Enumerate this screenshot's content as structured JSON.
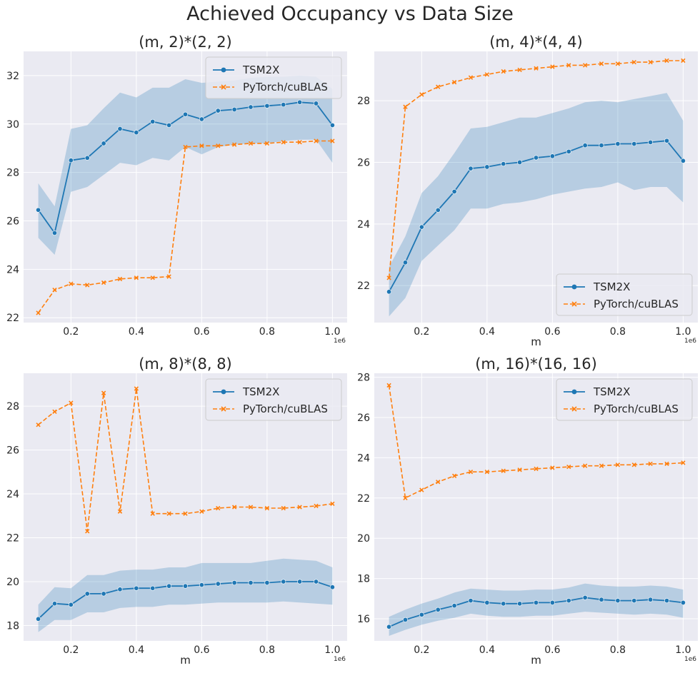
{
  "figure": {
    "suptitle": "Achieved Occupancy vs Data Size"
  },
  "colors": {
    "tsm2x": "#1f77b4",
    "cublas": "#ff7f0e",
    "band": "#1f77b4",
    "panel_bg": "#eaeaf2",
    "grid": "#ffffff"
  },
  "chart_data": [
    {
      "type": "line",
      "title": "(m, 2)*(2, 2)",
      "xlabel": "",
      "ylabel": "",
      "x_offset_label": "1e6",
      "x": [
        0.1,
        0.15,
        0.2,
        0.25,
        0.3,
        0.35,
        0.4,
        0.45,
        0.5,
        0.55,
        0.6,
        0.65,
        0.7,
        0.75,
        0.8,
        0.85,
        0.9,
        0.95,
        1.0
      ],
      "xlim": [
        0.055,
        1.045
      ],
      "ylim": [
        21.8,
        33.0
      ],
      "xticks": [
        0.2,
        0.4,
        0.6,
        0.8,
        1.0
      ],
      "xtick_labels": [
        "0.2",
        "0.4",
        "0.6",
        "0.8",
        "1.0"
      ],
      "yticks": [
        22,
        24,
        26,
        28,
        30,
        32
      ],
      "ytick_labels": [
        "22",
        "24",
        "26",
        "28",
        "30",
        "32"
      ],
      "legend": "upper right",
      "series": [
        {
          "name": "TSM2X",
          "marker": "circle",
          "values": [
            26.45,
            25.5,
            28.5,
            28.6,
            29.2,
            29.8,
            29.65,
            30.1,
            29.95,
            30.4,
            30.2,
            30.55,
            30.6,
            30.7,
            30.75,
            30.8,
            30.9,
            30.85,
            29.95
          ],
          "band_low": [
            25.3,
            24.6,
            27.2,
            27.4,
            27.9,
            28.4,
            28.3,
            28.6,
            28.5,
            29.05,
            28.75,
            29.05,
            29.15,
            29.2,
            29.2,
            29.3,
            29.35,
            29.35,
            28.4
          ],
          "band_high": [
            27.55,
            26.6,
            29.8,
            29.95,
            30.65,
            31.3,
            31.1,
            31.5,
            31.5,
            31.85,
            31.7,
            31.75,
            31.8,
            31.9,
            31.95,
            31.95,
            32.0,
            31.95,
            31.45
          ]
        },
        {
          "name": "PyTorch/cuBLAS",
          "marker": "x",
          "values": [
            22.2,
            23.15,
            23.4,
            23.35,
            23.45,
            23.6,
            23.65,
            23.65,
            23.7,
            29.05,
            29.1,
            29.1,
            29.15,
            29.2,
            29.2,
            29.25,
            29.25,
            29.3,
            29.3
          ]
        }
      ]
    },
    {
      "type": "line",
      "title": "(m, 4)*(4, 4)",
      "xlabel": "m",
      "ylabel": "",
      "x_offset_label": "1e6",
      "x": [
        0.1,
        0.15,
        0.2,
        0.25,
        0.3,
        0.35,
        0.4,
        0.45,
        0.5,
        0.55,
        0.6,
        0.65,
        0.7,
        0.75,
        0.8,
        0.85,
        0.9,
        0.95,
        1.0
      ],
      "xlim": [
        0.055,
        1.045
      ],
      "ylim": [
        20.8,
        29.6
      ],
      "xticks": [
        0.2,
        0.4,
        0.6,
        0.8,
        1.0
      ],
      "xtick_labels": [
        "0.2",
        "0.4",
        "0.6",
        "0.8",
        "1.0"
      ],
      "yticks": [
        22,
        24,
        26,
        28
      ],
      "ytick_labels": [
        "22",
        "24",
        "26",
        "28"
      ],
      "legend": "lower right",
      "series": [
        {
          "name": "TSM2X",
          "marker": "circle",
          "values": [
            21.8,
            22.75,
            23.9,
            24.45,
            25.05,
            25.8,
            25.85,
            25.95,
            26.0,
            26.15,
            26.2,
            26.35,
            26.55,
            26.55,
            26.6,
            26.6,
            26.65,
            26.7,
            26.05
          ],
          "band_low": [
            21.0,
            21.6,
            22.8,
            23.3,
            23.8,
            24.5,
            24.5,
            24.65,
            24.7,
            24.8,
            24.95,
            25.05,
            25.15,
            25.2,
            25.35,
            25.1,
            25.2,
            25.2,
            24.7
          ],
          "band_high": [
            22.6,
            23.6,
            25.0,
            25.55,
            26.3,
            27.1,
            27.15,
            27.3,
            27.45,
            27.45,
            27.6,
            27.75,
            27.95,
            28.0,
            27.95,
            28.05,
            28.15,
            28.25,
            27.35
          ]
        },
        {
          "name": "PyTorch/cuBLAS",
          "marker": "x",
          "values": [
            22.25,
            27.8,
            28.2,
            28.45,
            28.6,
            28.75,
            28.85,
            28.95,
            29.0,
            29.05,
            29.1,
            29.15,
            29.15,
            29.2,
            29.2,
            29.25,
            29.25,
            29.3,
            29.3
          ]
        }
      ]
    },
    {
      "type": "line",
      "title": "(m, 8)*(8, 8)",
      "xlabel": "m",
      "ylabel": "",
      "x_offset_label": "1e6",
      "x": [
        0.1,
        0.15,
        0.2,
        0.25,
        0.3,
        0.35,
        0.4,
        0.45,
        0.5,
        0.55,
        0.6,
        0.65,
        0.7,
        0.75,
        0.8,
        0.85,
        0.9,
        0.95,
        1.0
      ],
      "xlim": [
        0.055,
        1.045
      ],
      "ylim": [
        17.3,
        29.5
      ],
      "xticks": [
        0.2,
        0.4,
        0.6,
        0.8,
        1.0
      ],
      "xtick_labels": [
        "0.2",
        "0.4",
        "0.6",
        "0.8",
        "1.0"
      ],
      "yticks": [
        18,
        20,
        22,
        24,
        26,
        28
      ],
      "ytick_labels": [
        "18",
        "20",
        "22",
        "24",
        "26",
        "28"
      ],
      "legend": "upper right",
      "series": [
        {
          "name": "TSM2X",
          "marker": "circle",
          "values": [
            18.3,
            19.0,
            18.95,
            19.45,
            19.45,
            19.65,
            19.7,
            19.7,
            19.8,
            19.8,
            19.85,
            19.9,
            19.95,
            19.95,
            19.95,
            20.0,
            20.0,
            20.0,
            19.75
          ],
          "band_low": [
            17.7,
            18.25,
            18.25,
            18.6,
            18.6,
            18.8,
            18.85,
            18.85,
            18.95,
            18.95,
            19.0,
            19.05,
            19.05,
            19.05,
            19.05,
            19.1,
            19.05,
            19.0,
            18.95
          ],
          "band_high": [
            18.95,
            19.75,
            19.7,
            20.3,
            20.3,
            20.5,
            20.55,
            20.55,
            20.65,
            20.65,
            20.85,
            20.85,
            20.85,
            20.85,
            20.95,
            21.05,
            21.0,
            20.95,
            20.65
          ]
        },
        {
          "name": "PyTorch/cuBLAS",
          "marker": "x",
          "values": [
            27.15,
            27.75,
            28.15,
            22.3,
            28.6,
            23.2,
            28.8,
            23.1,
            23.1,
            23.1,
            23.2,
            23.35,
            23.4,
            23.4,
            23.35,
            23.35,
            23.4,
            23.45,
            23.55
          ]
        }
      ]
    },
    {
      "type": "line",
      "title": "(m, 16)*(16, 16)",
      "xlabel": "m",
      "ylabel": "",
      "x_offset_label": "1e6",
      "x": [
        0.1,
        0.15,
        0.2,
        0.25,
        0.3,
        0.35,
        0.4,
        0.45,
        0.5,
        0.55,
        0.6,
        0.65,
        0.7,
        0.75,
        0.8,
        0.85,
        0.9,
        0.95,
        1.0
      ],
      "xlim": [
        0.055,
        1.045
      ],
      "ylim": [
        14.9,
        28.2
      ],
      "xticks": [
        0.2,
        0.4,
        0.6,
        0.8,
        1.0
      ],
      "xtick_labels": [
        "0.2",
        "0.4",
        "0.6",
        "0.8",
        "1.0"
      ],
      "yticks": [
        16,
        18,
        20,
        22,
        24,
        26,
        28
      ],
      "ytick_labels": [
        "16",
        "18",
        "20",
        "22",
        "24",
        "26",
        "28"
      ],
      "legend": "upper right",
      "series": [
        {
          "name": "TSM2X",
          "marker": "circle",
          "values": [
            15.6,
            15.95,
            16.2,
            16.45,
            16.65,
            16.9,
            16.8,
            16.75,
            16.75,
            16.8,
            16.8,
            16.9,
            17.05,
            16.95,
            16.9,
            16.9,
            16.95,
            16.9,
            16.8
          ],
          "band_low": [
            15.15,
            15.45,
            15.7,
            15.9,
            16.05,
            16.25,
            16.15,
            16.1,
            16.1,
            16.15,
            16.15,
            16.25,
            16.35,
            16.3,
            16.25,
            16.2,
            16.25,
            16.2,
            16.05
          ],
          "band_high": [
            16.1,
            16.45,
            16.75,
            17.0,
            17.3,
            17.5,
            17.45,
            17.4,
            17.4,
            17.45,
            17.45,
            17.55,
            17.75,
            17.65,
            17.6,
            17.6,
            17.65,
            17.6,
            17.45
          ]
        },
        {
          "name": "PyTorch/cuBLAS",
          "marker": "x",
          "values": [
            27.6,
            22.0,
            22.4,
            22.8,
            23.1,
            23.3,
            23.3,
            23.35,
            23.4,
            23.45,
            23.5,
            23.55,
            23.6,
            23.6,
            23.65,
            23.65,
            23.7,
            23.7,
            23.75
          ]
        }
      ]
    }
  ]
}
